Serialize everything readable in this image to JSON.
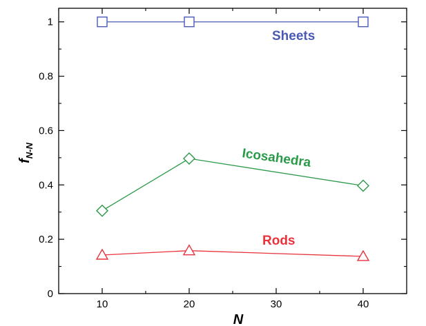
{
  "chart_data": {
    "type": "line",
    "xlabel": "N",
    "ylabel": {
      "main": "f",
      "sub": "N-N"
    },
    "xlim": [
      5,
      45
    ],
    "ylim": [
      0,
      1.05
    ],
    "xticks": [
      10,
      20,
      30,
      40
    ],
    "yticks": [
      0,
      0.2,
      0.4,
      0.6,
      0.8,
      1
    ],
    "xtick_labels": [
      "10",
      "20",
      "30",
      "40"
    ],
    "ytick_labels": [
      "0",
      "0.2",
      "0.4",
      "0.6",
      "0.8",
      "1"
    ],
    "x": [
      10,
      20,
      40
    ],
    "series": [
      {
        "name": "Sheets",
        "values": [
          1.0,
          1.0,
          1.0
        ],
        "color": "#4a5ab4",
        "marker": "square"
      },
      {
        "name": "Icosahedra",
        "values": [
          0.305,
          0.497,
          0.397
        ],
        "color": "#2a9a48",
        "marker": "diamond"
      },
      {
        "name": "Rods",
        "values": [
          0.142,
          0.158,
          0.137
        ],
        "color": "#e8323c",
        "marker": "triangle"
      }
    ],
    "grid": false,
    "legend": "inline labels"
  }
}
